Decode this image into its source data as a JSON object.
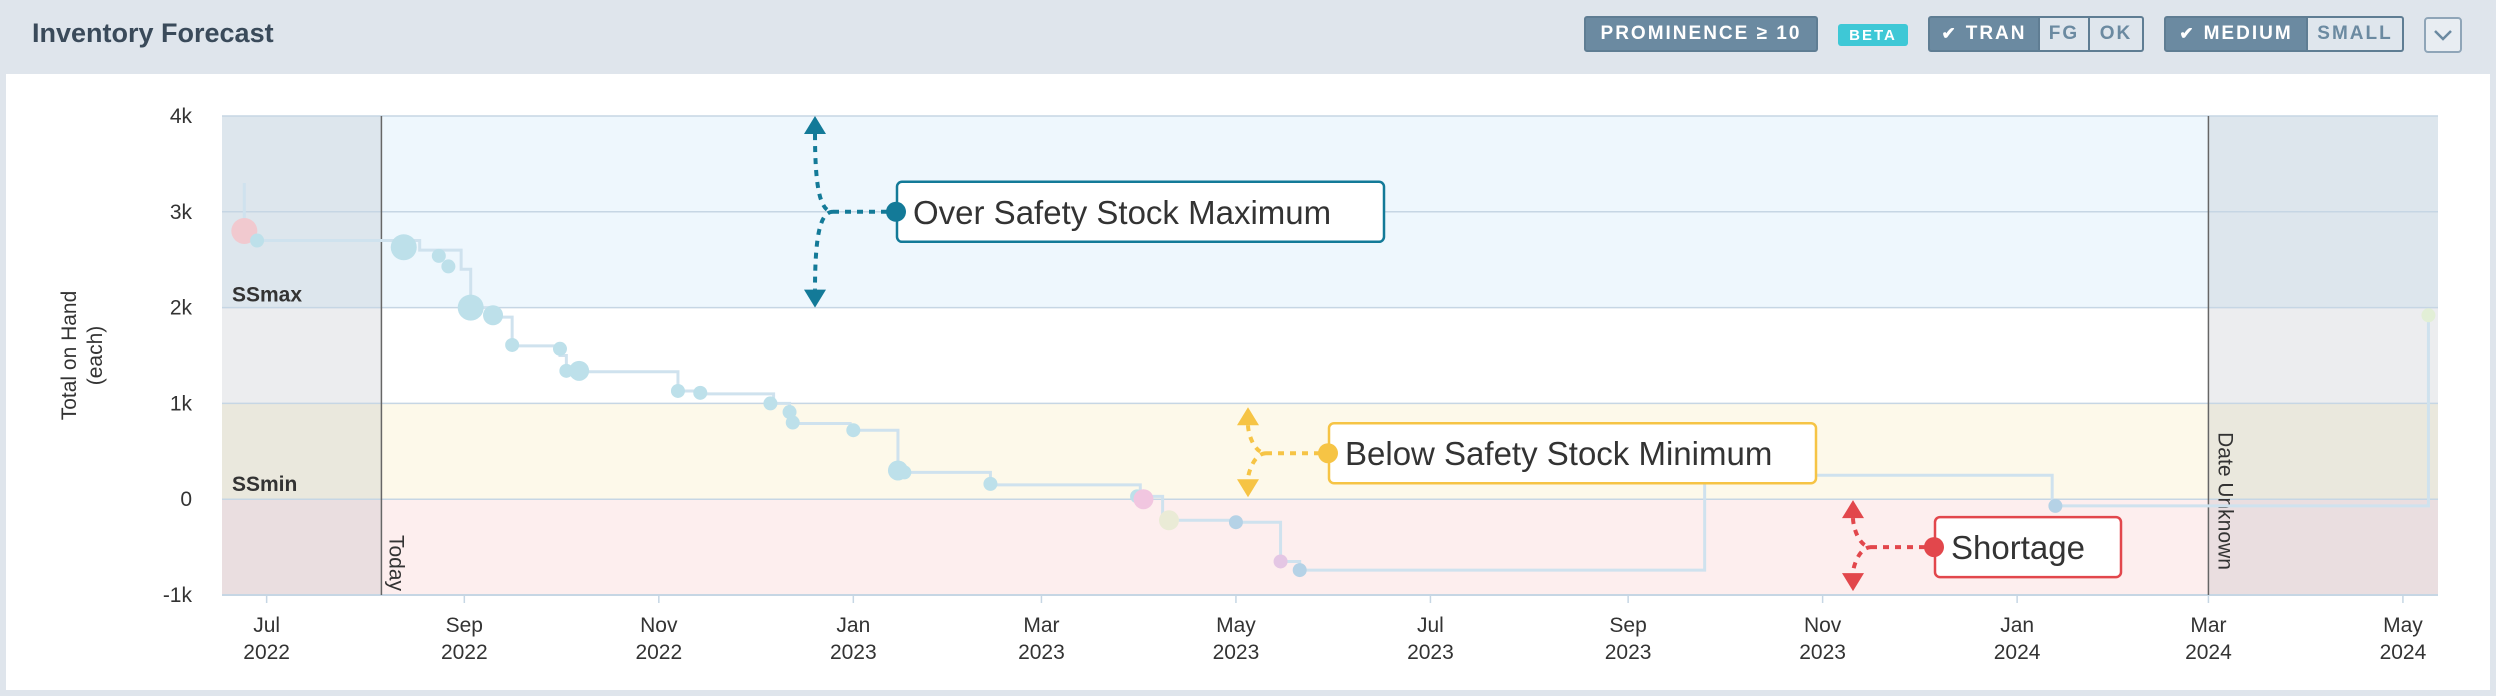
{
  "header": {
    "title": "Inventory Forecast",
    "prominence_label": "PROMINENCE ≥ 10",
    "beta_label": "BETA",
    "type_filters": [
      {
        "label": "TRAN",
        "checked": true
      },
      {
        "label": "FG",
        "checked": false
      },
      {
        "label": "OK",
        "checked": false
      }
    ],
    "size_filters": [
      {
        "label": "MEDIUM",
        "checked": true
      },
      {
        "label": "SMALL",
        "checked": false
      }
    ],
    "collapse_icon": "chevron-down-icon"
  },
  "chart_data": {
    "type": "line",
    "title": "",
    "ylabel_lines": [
      "Total on Hand",
      "(each)"
    ],
    "ylim": [
      -1000,
      4000
    ],
    "yticks": [
      {
        "value": 4000,
        "label": "4k"
      },
      {
        "value": 3000,
        "label": "3k"
      },
      {
        "value": 2000,
        "label": "2k"
      },
      {
        "value": 1000,
        "label": "1k"
      },
      {
        "value": 0,
        "label": "0"
      },
      {
        "value": -1000,
        "label": "-1k"
      }
    ],
    "xlim": [
      "2022-06-17",
      "2024-05-12"
    ],
    "xticks": [
      {
        "date": "2022-07-01",
        "month": "Jul",
        "year": "2022"
      },
      {
        "date": "2022-09-01",
        "month": "Sep",
        "year": "2022"
      },
      {
        "date": "2022-11-01",
        "month": "Nov",
        "year": "2022"
      },
      {
        "date": "2023-01-01",
        "month": "Jan",
        "year": "2023"
      },
      {
        "date": "2023-03-01",
        "month": "Mar",
        "year": "2023"
      },
      {
        "date": "2023-05-01",
        "month": "May",
        "year": "2023"
      },
      {
        "date": "2023-07-01",
        "month": "Jul",
        "year": "2023"
      },
      {
        "date": "2023-09-01",
        "month": "Sep",
        "year": "2023"
      },
      {
        "date": "2023-11-01",
        "month": "Nov",
        "year": "2023"
      },
      {
        "date": "2024-01-01",
        "month": "Jan",
        "year": "2024"
      },
      {
        "date": "2024-03-01",
        "month": "Mar",
        "year": "2024"
      },
      {
        "date": "2024-05-01",
        "month": "May",
        "year": "2024"
      }
    ],
    "safety_stock": {
      "max": 2000,
      "min": 1000,
      "max_label": "SSmax",
      "min_label": "SSmin"
    },
    "zones": [
      {
        "name": "Over Safety Stock Maximum",
        "from": 2000,
        "to": 4000,
        "color": "#eef7fd",
        "accent": "#137a98"
      },
      {
        "name": "Below Safety Stock Minimum",
        "from": 0,
        "to": 1000,
        "color": "#fdf9ea",
        "accent": "#f6c445"
      },
      {
        "name": "Shortage",
        "from": -1000,
        "to": 0,
        "color": "#fdeeee",
        "accent": "#e2474c"
      }
    ],
    "today": {
      "date": "2022-08-06",
      "label": "Today"
    },
    "date_unknown": {
      "date": "2024-03-01",
      "label": "Date Unknown"
    },
    "series": [
      {
        "steps": [
          {
            "date": "2022-06-24",
            "value": 3300
          },
          {
            "date": "2022-06-24",
            "value": 2700
          },
          {
            "date": "2022-08-18",
            "value": 2600
          },
          {
            "date": "2022-08-31",
            "value": 2400
          },
          {
            "date": "2022-09-03",
            "value": 2000
          },
          {
            "date": "2022-09-10",
            "value": 1900
          },
          {
            "date": "2022-09-16",
            "value": 1600
          },
          {
            "date": "2022-10-01",
            "value": 1500
          },
          {
            "date": "2022-10-03",
            "value": 1330
          },
          {
            "date": "2022-10-06",
            "value": 1330
          },
          {
            "date": "2022-11-07",
            "value": 1130
          },
          {
            "date": "2022-11-14",
            "value": 1100
          },
          {
            "date": "2022-12-07",
            "value": 1000
          },
          {
            "date": "2022-12-12",
            "value": 950
          },
          {
            "date": "2022-12-13",
            "value": 790
          },
          {
            "date": "2022-12-31",
            "value": 720
          },
          {
            "date": "2023-01-15",
            "value": 300
          },
          {
            "date": "2023-01-17",
            "value": 280
          },
          {
            "date": "2023-02-13",
            "value": 150
          },
          {
            "date": "2023-04-01",
            "value": 30
          },
          {
            "date": "2023-04-08",
            "value": -220
          },
          {
            "date": "2023-05-01",
            "value": -240
          },
          {
            "date": "2023-05-15",
            "value": -650
          },
          {
            "date": "2023-05-21",
            "value": -740
          },
          {
            "date": "2023-09-25",
            "value": 250
          },
          {
            "date": "2024-01-12",
            "value": -70
          },
          {
            "date": "2024-05-09",
            "value": 1900
          }
        ],
        "events": [
          {
            "date": "2022-06-24",
            "value": 2800,
            "size": "large",
            "color": "#f1c9cf"
          },
          {
            "date": "2022-06-28",
            "value": 2700,
            "size": "small",
            "color": "#bde0ea"
          },
          {
            "date": "2022-08-13",
            "value": 2630,
            "size": "large",
            "color": "#bde0ea"
          },
          {
            "date": "2022-08-24",
            "value": 2540,
            "size": "small",
            "color": "#bde0ea"
          },
          {
            "date": "2022-08-27",
            "value": 2430,
            "size": "small",
            "color": "#bde0ea"
          },
          {
            "date": "2022-09-03",
            "value": 2000,
            "size": "large",
            "color": "#bde0ea"
          },
          {
            "date": "2022-09-10",
            "value": 1920,
            "size": "medium",
            "color": "#bde0ea"
          },
          {
            "date": "2022-09-16",
            "value": 1610,
            "size": "small",
            "color": "#bde0ea"
          },
          {
            "date": "2022-10-01",
            "value": 1570,
            "size": "small",
            "color": "#bde0ea"
          },
          {
            "date": "2022-10-03",
            "value": 1340,
            "size": "small",
            "color": "#bde0ea"
          },
          {
            "date": "2022-10-07",
            "value": 1340,
            "size": "medium",
            "color": "#bde0ea"
          },
          {
            "date": "2022-11-07",
            "value": 1130,
            "size": "small",
            "color": "#bde0ea"
          },
          {
            "date": "2022-11-14",
            "value": 1110,
            "size": "small",
            "color": "#bde0ea"
          },
          {
            "date": "2022-12-06",
            "value": 1000,
            "size": "small",
            "color": "#bde0ea"
          },
          {
            "date": "2022-12-12",
            "value": 910,
            "size": "small",
            "color": "#bde0ea"
          },
          {
            "date": "2022-12-13",
            "value": 800,
            "size": "small",
            "color": "#bde0ea"
          },
          {
            "date": "2023-01-01",
            "value": 720,
            "size": "small",
            "color": "#bde0ea"
          },
          {
            "date": "2023-01-15",
            "value": 300,
            "size": "medium",
            "color": "#bde0ea"
          },
          {
            "date": "2023-01-17",
            "value": 280,
            "size": "small",
            "color": "#bde0ea"
          },
          {
            "date": "2023-02-13",
            "value": 160,
            "size": "small",
            "color": "#bde0ea"
          },
          {
            "date": "2023-03-31",
            "value": 30,
            "size": "small",
            "color": "#bde0ea"
          },
          {
            "date": "2023-04-02",
            "value": 0,
            "size": "medium",
            "color": "#f1c6e0"
          },
          {
            "date": "2023-04-10",
            "value": -220,
            "size": "medium",
            "color": "#eaebd6"
          },
          {
            "date": "2023-05-01",
            "value": -240,
            "size": "small",
            "color": "#b5d2e6"
          },
          {
            "date": "2023-05-15",
            "value": -650,
            "size": "small",
            "color": "#e4c6e4"
          },
          {
            "date": "2023-05-21",
            "value": -740,
            "size": "small",
            "color": "#b5d2e6"
          },
          {
            "date": "2024-01-13",
            "value": -70,
            "size": "small",
            "color": "#b5d2e6"
          },
          {
            "date": "2024-05-09",
            "value": 1920,
            "size": "small",
            "color": "#e2efd6"
          }
        ]
      }
    ],
    "annotations": [
      {
        "text": "Over Safety Stock Maximum",
        "zone": "over",
        "color": "#137a98",
        "text_color": "#333333"
      },
      {
        "text": "Below Safety Stock Minimum",
        "zone": "below",
        "color": "#f6c445",
        "text_color": "#333333"
      },
      {
        "text": "Shortage",
        "zone": "shortage",
        "color": "#e2474c",
        "text_color": "#333333"
      }
    ],
    "grid": true
  }
}
